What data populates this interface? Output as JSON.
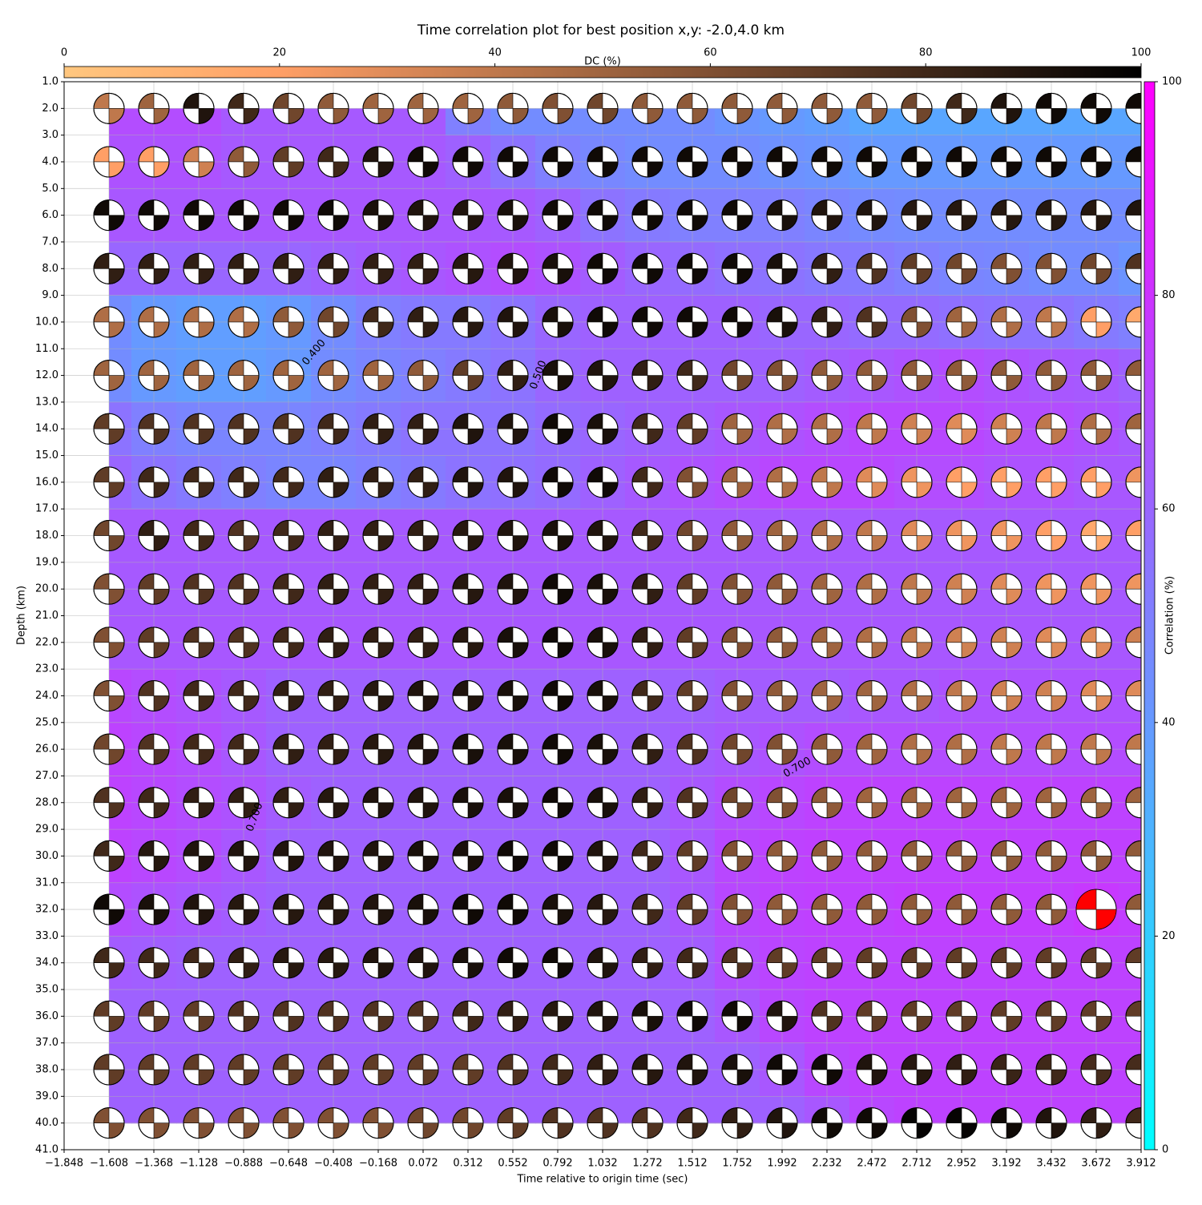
{
  "chart_data": {
    "type": "heatmap",
    "title": "Time correlation plot for best position x,y: -2.0,4.0 km",
    "xlabel": "Time relative to origin time (sec)",
    "ylabel": "Depth (km)",
    "grid": true,
    "xlim": [
      -1.848,
      3.912
    ],
    "xticks": [
      {
        "value": -1.848,
        "label": "−1.848"
      },
      {
        "value": -1.608,
        "label": "−1.608"
      },
      {
        "value": -1.368,
        "label": "−1.368"
      },
      {
        "value": -1.128,
        "label": "−1.128"
      },
      {
        "value": -0.888,
        "label": "−0.888"
      },
      {
        "value": -0.648,
        "label": "−0.648"
      },
      {
        "value": -0.408,
        "label": "−0.408"
      },
      {
        "value": -0.168,
        "label": "−0.168"
      },
      0.072,
      0.312,
      0.552,
      0.792,
      1.032,
      1.272,
      1.512,
      1.752,
      1.992,
      2.232,
      2.472,
      2.712,
      2.952,
      3.192,
      3.432,
      3.672,
      3.912
    ],
    "ylim": [
      41,
      1
    ],
    "yticks": [
      {
        "value": 1,
        "label": "1.0"
      },
      {
        "value": 2,
        "label": "2.0"
      },
      {
        "value": 3,
        "label": "3.0"
      },
      {
        "value": 4,
        "label": "4.0"
      },
      {
        "value": 5,
        "label": "5.0"
      },
      {
        "value": 6,
        "label": "6.0"
      },
      {
        "value": 7,
        "label": "7.0"
      },
      {
        "value": 8,
        "label": "8.0"
      },
      {
        "value": 9,
        "label": "9.0"
      },
      {
        "value": 10,
        "label": "10.0"
      },
      {
        "value": 11,
        "label": "11.0"
      },
      {
        "value": 12,
        "label": "12.0"
      },
      {
        "value": 13,
        "label": "13.0"
      },
      {
        "value": 14,
        "label": "14.0"
      },
      {
        "value": 15,
        "label": "15.0"
      },
      {
        "value": 16,
        "label": "16.0"
      },
      {
        "value": 17,
        "label": "17.0"
      },
      {
        "value": 18,
        "label": "18.0"
      },
      {
        "value": 19,
        "label": "19.0"
      },
      {
        "value": 20,
        "label": "20.0"
      },
      {
        "value": 21,
        "label": "21.0"
      },
      {
        "value": 22,
        "label": "22.0"
      },
      {
        "value": 23,
        "label": "23.0"
      },
      {
        "value": 24,
        "label": "24.0"
      },
      {
        "value": 25,
        "label": "25.0"
      },
      {
        "value": 26,
        "label": "26.0"
      },
      {
        "value": 27,
        "label": "27.0"
      },
      {
        "value": 28,
        "label": "28.0"
      },
      {
        "value": 29,
        "label": "29.0"
      },
      {
        "value": 30,
        "label": "30.0"
      },
      {
        "value": 31,
        "label": "31.0"
      },
      {
        "value": 32,
        "label": "32.0"
      },
      {
        "value": 33,
        "label": "33.0"
      },
      {
        "value": 34,
        "label": "34.0"
      },
      {
        "value": 35,
        "label": "35.0"
      },
      {
        "value": 36,
        "label": "36.0"
      },
      {
        "value": 37,
        "label": "37.0"
      },
      {
        "value": 38,
        "label": "38.0"
      },
      {
        "value": 39,
        "label": "39.0"
      },
      {
        "value": 40,
        "label": "40.0"
      },
      {
        "value": 41,
        "label": "41.0"
      }
    ],
    "x": [
      -1.608,
      -1.368,
      -1.128,
      -0.888,
      -0.648,
      -0.408,
      -0.168,
      0.072,
      0.312,
      0.552,
      0.792,
      1.032,
      1.272,
      1.512,
      1.752,
      1.992,
      2.232,
      2.472,
      2.712,
      2.952,
      3.192,
      3.432,
      3.672,
      3.912
    ],
    "depths": [
      2,
      4,
      6,
      8,
      10,
      12,
      14,
      16,
      18,
      20,
      22,
      24,
      26,
      28,
      30,
      32,
      34,
      36,
      38,
      40
    ],
    "dc": [
      [
        40,
        50,
        90,
        80,
        65,
        55,
        50,
        50,
        50,
        55,
        60,
        65,
        55,
        55,
        55,
        55,
        55,
        55,
        65,
        80,
        90,
        95,
        95,
        95
      ],
      [
        20,
        20,
        35,
        55,
        70,
        80,
        90,
        95,
        95,
        95,
        95,
        95,
        95,
        95,
        95,
        95,
        95,
        95,
        95,
        95,
        95,
        95,
        95,
        95
      ],
      [
        95,
        95,
        95,
        95,
        95,
        95,
        92,
        90,
        90,
        92,
        95,
        95,
        95,
        95,
        95,
        92,
        90,
        90,
        88,
        88,
        88,
        88,
        88,
        90
      ],
      [
        85,
        85,
        85,
        85,
        85,
        85,
        85,
        85,
        88,
        90,
        92,
        95,
        95,
        95,
        95,
        92,
        85,
        75,
        70,
        65,
        60,
        60,
        65,
        75
      ],
      [
        45,
        45,
        45,
        45,
        55,
        65,
        80,
        85,
        88,
        90,
        92,
        95,
        95,
        95,
        95,
        92,
        85,
        75,
        60,
        50,
        45,
        40,
        20,
        15
      ],
      [
        50,
        50,
        50,
        50,
        50,
        50,
        50,
        55,
        70,
        85,
        92,
        90,
        85,
        80,
        65,
        60,
        55,
        55,
        55,
        55,
        55,
        55,
        55,
        55
      ],
      [
        70,
        75,
        75,
        75,
        75,
        80,
        85,
        85,
        90,
        90,
        95,
        92,
        80,
        70,
        50,
        45,
        45,
        40,
        35,
        30,
        35,
        40,
        45,
        50
      ],
      [
        70,
        80,
        80,
        80,
        80,
        85,
        85,
        85,
        90,
        90,
        95,
        95,
        80,
        60,
        50,
        45,
        40,
        30,
        25,
        20,
        20,
        20,
        20,
        25
      ],
      [
        65,
        85,
        80,
        75,
        80,
        85,
        85,
        85,
        88,
        90,
        92,
        90,
        80,
        65,
        55,
        50,
        45,
        40,
        30,
        25,
        25,
        20,
        15,
        20
      ],
      [
        60,
        70,
        75,
        75,
        80,
        85,
        85,
        85,
        88,
        90,
        95,
        92,
        85,
        70,
        60,
        55,
        50,
        45,
        40,
        35,
        30,
        25,
        25,
        25
      ],
      [
        60,
        70,
        75,
        75,
        80,
        85,
        85,
        85,
        88,
        92,
        95,
        92,
        85,
        70,
        60,
        55,
        50,
        45,
        40,
        35,
        35,
        30,
        30,
        35
      ],
      [
        60,
        75,
        80,
        80,
        85,
        85,
        88,
        90,
        90,
        92,
        95,
        92,
        80,
        70,
        60,
        55,
        50,
        50,
        45,
        40,
        35,
        35,
        30,
        30
      ],
      [
        65,
        75,
        80,
        80,
        85,
        85,
        88,
        90,
        92,
        92,
        95,
        92,
        85,
        75,
        65,
        60,
        55,
        50,
        45,
        45,
        40,
        40,
        40,
        40
      ],
      [
        75,
        80,
        85,
        85,
        85,
        88,
        90,
        90,
        92,
        92,
        95,
        92,
        85,
        75,
        65,
        60,
        55,
        50,
        50,
        50,
        50,
        50,
        50,
        50
      ],
      [
        80,
        88,
        90,
        90,
        90,
        90,
        90,
        92,
        92,
        95,
        95,
        90,
        80,
        70,
        60,
        55,
        55,
        55,
        55,
        55,
        55,
        55,
        55,
        55
      ],
      [
        95,
        92,
        90,
        88,
        88,
        88,
        90,
        92,
        95,
        95,
        92,
        88,
        80,
        70,
        60,
        55,
        55,
        55,
        55,
        55,
        55,
        55,
        55,
        55
      ],
      [
        80,
        80,
        80,
        85,
        88,
        88,
        90,
        90,
        92,
        95,
        95,
        90,
        85,
        80,
        75,
        70,
        70,
        70,
        70,
        70,
        70,
        70,
        70,
        70
      ],
      [
        70,
        70,
        70,
        75,
        75,
        75,
        75,
        75,
        80,
        85,
        88,
        90,
        92,
        95,
        95,
        90,
        75,
        70,
        70,
        70,
        70,
        70,
        70,
        70
      ],
      [
        70,
        70,
        70,
        70,
        70,
        70,
        70,
        70,
        70,
        75,
        80,
        85,
        88,
        90,
        92,
        95,
        95,
        90,
        88,
        85,
        82,
        80,
        78,
        78
      ],
      [
        60,
        60,
        60,
        60,
        60,
        60,
        60,
        65,
        65,
        70,
        75,
        75,
        75,
        80,
        85,
        90,
        95,
        95,
        98,
        98,
        95,
        90,
        85,
        80
      ]
    ],
    "correlation": [
      [
        70,
        70,
        70,
        65,
        65,
        65,
        65,
        65,
        50,
        45,
        45,
        45,
        45,
        45,
        42,
        40,
        38,
        35,
        35,
        35,
        35,
        35,
        35,
        35
      ],
      [
        68,
        68,
        68,
        65,
        65,
        65,
        65,
        65,
        62,
        55,
        50,
        47,
        45,
        45,
        45,
        43,
        42,
        40,
        40,
        40,
        40,
        40,
        40,
        40
      ],
      [
        66,
        66,
        66,
        66,
        66,
        66,
        66,
        66,
        66,
        65,
        62,
        55,
        52,
        50,
        50,
        50,
        48,
        46,
        45,
        45,
        45,
        45,
        45,
        45
      ],
      [
        60,
        60,
        60,
        60,
        60,
        62,
        64,
        66,
        68,
        70,
        68,
        64,
        60,
        58,
        56,
        55,
        53,
        52,
        50,
        48,
        47,
        45,
        45,
        42
      ],
      [
        45,
        40,
        38,
        38,
        40,
        45,
        50,
        52,
        52,
        55,
        60,
        62,
        62,
        62,
        62,
        60,
        60,
        58,
        58,
        56,
        55,
        55,
        52,
        50
      ],
      [
        45,
        40,
        38,
        38,
        40,
        45,
        48,
        50,
        52,
        55,
        60,
        62,
        62,
        62,
        62,
        62,
        64,
        66,
        68,
        70,
        68,
        66,
        65,
        62
      ],
      [
        55,
        50,
        48,
        48,
        48,
        50,
        52,
        55,
        55,
        55,
        58,
        60,
        62,
        64,
        66,
        68,
        70,
        72,
        72,
        72,
        70,
        70,
        68,
        65
      ],
      [
        60,
        55,
        52,
        50,
        48,
        48,
        50,
        52,
        55,
        56,
        58,
        62,
        65,
        68,
        70,
        72,
        72,
        72,
        70,
        70,
        68,
        68,
        66,
        66
      ],
      [
        65,
        65,
        65,
        65,
        65,
        65,
        65,
        65,
        65,
        65,
        65,
        65,
        65,
        65,
        65,
        65,
        65,
        65,
        65,
        65,
        65,
        65,
        65,
        65
      ],
      [
        65,
        65,
        65,
        65,
        65,
        65,
        65,
        65,
        65,
        65,
        65,
        65,
        65,
        65,
        65,
        65,
        65,
        65,
        65,
        65,
        65,
        65,
        65,
        65
      ],
      [
        66,
        66,
        66,
        66,
        66,
        66,
        66,
        66,
        66,
        66,
        66,
        66,
        66,
        66,
        66,
        66,
        66,
        66,
        66,
        66,
        66,
        66,
        66,
        66
      ],
      [
        72,
        70,
        68,
        65,
        62,
        62,
        62,
        62,
        62,
        62,
        62,
        62,
        62,
        62,
        64,
        64,
        64,
        66,
        66,
        68,
        68,
        68,
        68,
        68
      ],
      [
        74,
        72,
        70,
        66,
        62,
        62,
        62,
        62,
        62,
        62,
        62,
        62,
        62,
        64,
        66,
        68,
        70,
        70,
        70,
        70,
        70,
        70,
        70,
        70
      ],
      [
        74,
        72,
        70,
        68,
        64,
        62,
        62,
        62,
        62,
        62,
        62,
        62,
        62,
        66,
        70,
        72,
        74,
        74,
        74,
        74,
        74,
        74,
        74,
        74
      ],
      [
        74,
        72,
        70,
        66,
        62,
        62,
        62,
        62,
        62,
        62,
        62,
        62,
        62,
        66,
        72,
        74,
        75,
        75,
        75,
        75,
        75,
        75,
        75,
        75
      ],
      [
        70,
        68,
        66,
        64,
        62,
        62,
        62,
        62,
        62,
        62,
        62,
        62,
        62,
        66,
        72,
        74,
        75,
        75,
        76,
        76,
        76,
        76,
        78,
        76
      ],
      [
        64,
        63,
        62,
        62,
        62,
        62,
        62,
        62,
        62,
        62,
        62,
        62,
        62,
        64,
        70,
        73,
        74,
        74,
        74,
        74,
        74,
        74,
        74,
        74
      ],
      [
        62,
        62,
        62,
        62,
        62,
        62,
        62,
        62,
        62,
        62,
        62,
        62,
        62,
        62,
        66,
        72,
        74,
        74,
        74,
        74,
        74,
        74,
        74,
        74
      ],
      [
        62,
        62,
        62,
        62,
        62,
        62,
        62,
        62,
        62,
        62,
        62,
        62,
        62,
        62,
        62,
        66,
        72,
        74,
        74,
        74,
        74,
        74,
        74,
        74
      ],
      [
        62,
        62,
        62,
        62,
        62,
        62,
        62,
        62,
        62,
        62,
        62,
        62,
        62,
        62,
        62,
        62,
        66,
        72,
        74,
        74,
        74,
        74,
        74,
        74
      ]
    ],
    "best": {
      "x": 3.672,
      "depth": 32,
      "color": "#ff0000"
    },
    "dc_colorbar": {
      "label": "DC (%)",
      "lim": [
        0,
        100
      ],
      "ticks": [
        0,
        20,
        40,
        60,
        80,
        100
      ]
    },
    "correlation_colorbar": {
      "label": "Correlation (%)",
      "lim": [
        0,
        100
      ],
      "ticks": [
        0,
        20,
        40,
        60,
        80,
        100
      ]
    },
    "annotations": [
      {
        "text": "0.400"
      },
      {
        "text": "0.500"
      },
      {
        "text": "0.700"
      },
      {
        "text": "0.700"
      }
    ]
  }
}
